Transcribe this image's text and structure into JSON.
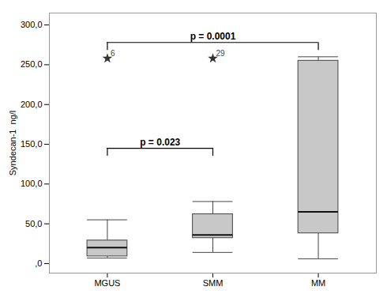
{
  "chart_data": {
    "type": "box",
    "categories": [
      "MGUS",
      "SMM",
      "MM"
    ],
    "q1": [
      9,
      32,
      38
    ],
    "median": [
      20,
      36,
      65
    ],
    "q3": [
      29,
      62,
      255
    ],
    "whisker_low": [
      7,
      14,
      6
    ],
    "whisker_high": [
      55,
      78,
      260
    ],
    "outliers": [
      [
        258
      ],
      [
        258
      ],
      []
    ],
    "outlier_labels": [
      [
        "6"
      ],
      [
        "29"
      ],
      []
    ],
    "ylabel": "Syndecan-1  ng/l",
    "ylim": [
      -12,
      315
    ],
    "yticks": [
      {
        "value": 0,
        "label": ",0"
      },
      {
        "value": 50,
        "label": "50,0"
      },
      {
        "value": 100,
        "label": "100,0"
      },
      {
        "value": 150,
        "label": "150,0"
      },
      {
        "value": 200,
        "label": "200,0"
      },
      {
        "value": 250,
        "label": "250,0"
      },
      {
        "value": 300,
        "label": "300,0"
      }
    ],
    "color": "#c8c8c8",
    "grid": false,
    "annotations": [
      {
        "x1": "MGUS",
        "x2": "SMM",
        "y": 145,
        "y_end": 135,
        "text": "p = 0.023"
      },
      {
        "x1": "MGUS",
        "x2": "MM",
        "y": 278,
        "y_end": 268,
        "text": "p = 0.0001"
      }
    ]
  }
}
